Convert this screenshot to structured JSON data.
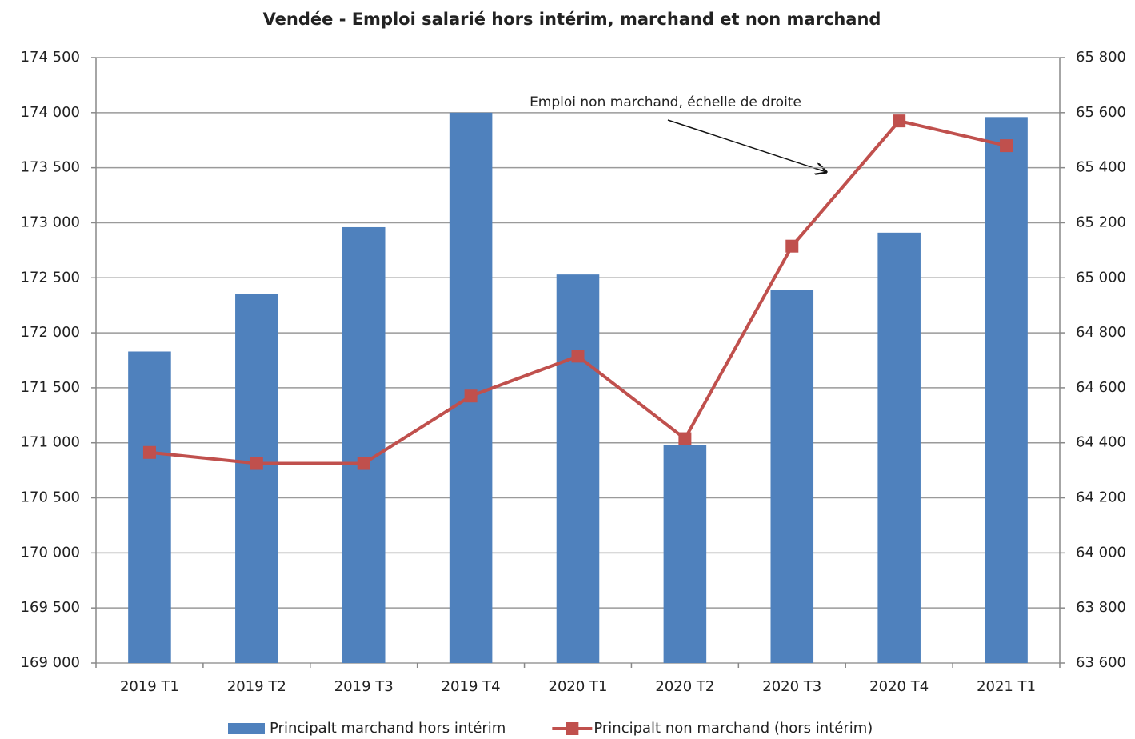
{
  "chart_data": {
    "type": "bar_line",
    "title": "Vendée - Emploi salarié hors intérim, marchand et non marchand",
    "annotation": "Emploi non marchand, échelle de droite",
    "categories": [
      "2019 T1",
      "2019 T2",
      "2019 T3",
      "2019 T4",
      "2020 T1",
      "2020 T2",
      "2020 T3",
      "2020 T4",
      "2021 T1"
    ],
    "series": [
      {
        "name": "Principalt marchand hors intérim",
        "type": "bar",
        "color": "#4f81bd",
        "values": [
          171830,
          172350,
          172960,
          174000,
          172530,
          170980,
          172390,
          172910,
          173960
        ]
      },
      {
        "name": "Principalt non marchand (hors intérim)",
        "type": "line",
        "axis": "y2",
        "color": "#c0504d",
        "values": [
          64365,
          64325,
          64325,
          64570,
          64715,
          64415,
          65115,
          65570,
          65480
        ]
      }
    ],
    "ylim": [
      169000,
      174500
    ],
    "yticks": [
      {
        "value": 169000,
        "label": "169 000"
      },
      {
        "value": 169500,
        "label": "169 500"
      },
      {
        "value": 170000,
        "label": "170 000"
      },
      {
        "value": 170500,
        "label": "170 500"
      },
      {
        "value": 171000,
        "label": "171 000"
      },
      {
        "value": 171500,
        "label": "171 500"
      },
      {
        "value": 172000,
        "label": "172 000"
      },
      {
        "value": 172500,
        "label": "172 500"
      },
      {
        "value": 173000,
        "label": "173 000"
      },
      {
        "value": 173500,
        "label": "173 500"
      },
      {
        "value": 174000,
        "label": "174 000"
      },
      {
        "value": 174500,
        "label": "174 500"
      }
    ],
    "y2lim": [
      63600,
      65800
    ],
    "y2ticks": [
      {
        "value": 63600,
        "label": "63 600"
      },
      {
        "value": 63800,
        "label": "63 800"
      },
      {
        "value": 64000,
        "label": "64 000"
      },
      {
        "value": 64200,
        "label": "64 200"
      },
      {
        "value": 64400,
        "label": "64 400"
      },
      {
        "value": 64600,
        "label": "64 600"
      },
      {
        "value": 64800,
        "label": "64 800"
      },
      {
        "value": 65000,
        "label": "65 000"
      },
      {
        "value": 65200,
        "label": "65 200"
      },
      {
        "value": 65400,
        "label": "65 400"
      },
      {
        "value": 65600,
        "label": "65 600"
      },
      {
        "value": 65800,
        "label": "65 800"
      }
    ],
    "grid": true,
    "legend": "bottom"
  }
}
